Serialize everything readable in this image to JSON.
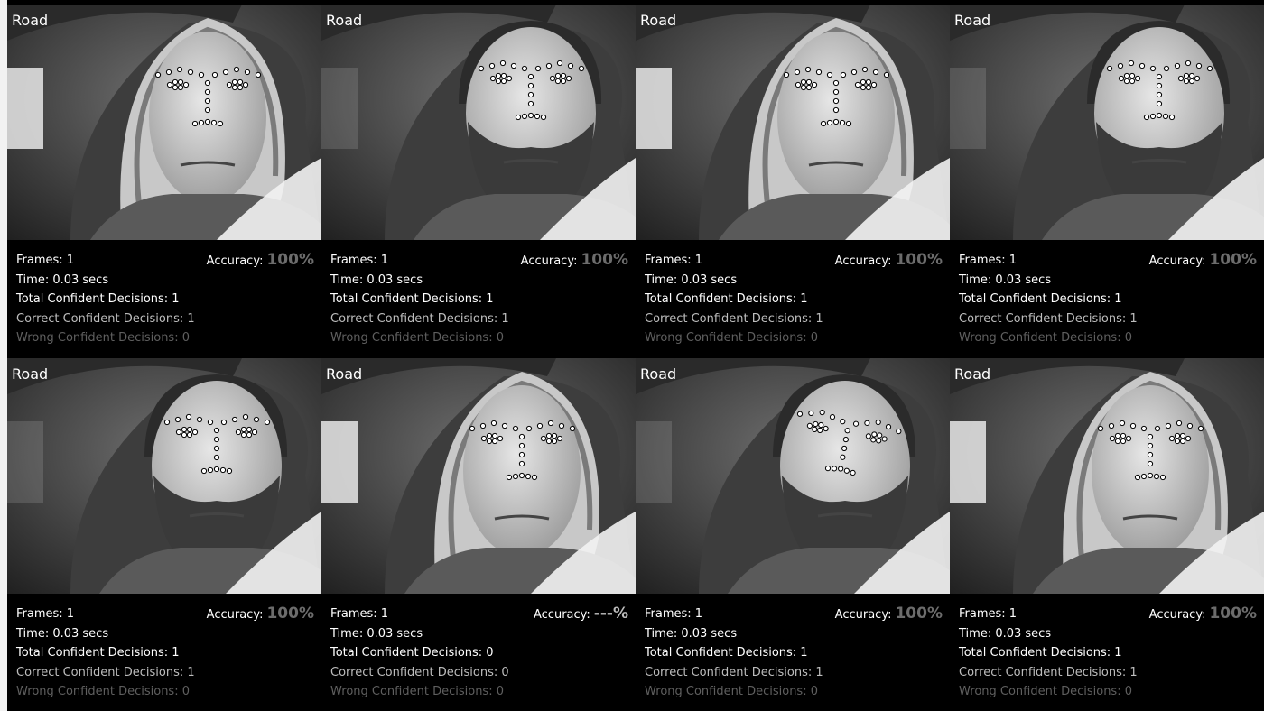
{
  "panels": [
    {
      "label": "Road",
      "frames": "Frames: 1",
      "time": "Time: 0.03 secs",
      "total": "Total Confident Decisions: 1",
      "correct": "Correct Confident Decisions: 1",
      "wrong": "Wrong Confident Decisions: 0",
      "accuracy_label": "Accuracy:",
      "accuracy_value": "100%",
      "subject": "woman",
      "tilt": 0
    },
    {
      "label": "Road",
      "frames": "Frames: 1",
      "time": "Time: 0.03 secs",
      "total": "Total Confident Decisions: 1",
      "correct": "Correct Confident Decisions: 1",
      "wrong": "Wrong Confident Decisions: 0",
      "accuracy_label": "Accuracy:",
      "accuracy_value": "100%",
      "subject": "man",
      "tilt": 0
    },
    {
      "label": "Road",
      "frames": "Frames: 1",
      "time": "Time: 0.03 secs",
      "total": "Total Confident Decisions: 1",
      "correct": "Correct Confident Decisions: 1",
      "wrong": "Wrong Confident Decisions: 0",
      "accuracy_label": "Accuracy:",
      "accuracy_value": "100%",
      "subject": "woman",
      "tilt": 0
    },
    {
      "label": "Road",
      "frames": "Frames: 1",
      "time": "Time: 0.03 secs",
      "total": "Total Confident Decisions: 1",
      "correct": "Correct Confident Decisions: 1",
      "wrong": "Wrong Confident Decisions: 0",
      "accuracy_label": "Accuracy:",
      "accuracy_value": "100%",
      "subject": "man",
      "tilt": 0
    },
    {
      "label": "Road",
      "frames": "Frames: 1",
      "time": "Time: 0.03 secs",
      "total": "Total Confident Decisions: 1",
      "correct": "Correct Confident Decisions: 1",
      "wrong": "Wrong Confident Decisions: 0",
      "accuracy_label": "Accuracy:",
      "accuracy_value": "100%",
      "subject": "man",
      "tilt": 0
    },
    {
      "label": "Road",
      "frames": "Frames: 1",
      "time": "Time: 0.03 secs",
      "total": "Total Confident Decisions: 0",
      "correct": "Correct Confident Decisions: 0",
      "wrong": "Wrong Confident Decisions: 0",
      "accuracy_label": "Accuracy:",
      "accuracy_value": "---%",
      "subject": "woman",
      "tilt": 0
    },
    {
      "label": "Road",
      "frames": "Frames: 1",
      "time": "Time: 0.03 secs",
      "total": "Total Confident Decisions: 1",
      "correct": "Correct Confident Decisions: 1",
      "wrong": "Wrong Confident Decisions: 0",
      "accuracy_label": "Accuracy:",
      "accuracy_value": "100%",
      "subject": "man",
      "tilt": 10
    },
    {
      "label": "Road",
      "frames": "Frames: 1",
      "time": "Time: 0.03 secs",
      "total": "Total Confident Decisions: 1",
      "correct": "Correct Confident Decisions: 1",
      "wrong": "Wrong Confident Decisions: 0",
      "accuracy_label": "Accuracy:",
      "accuracy_value": "100%",
      "subject": "woman",
      "tilt": 0
    }
  ],
  "colors": {
    "background": "#000000",
    "text": "#ffffff",
    "accuracy": "#6c6c6c",
    "correct": "#bdbdbd",
    "wrong": "#5f5f5f",
    "landmark": "#ffffff"
  }
}
